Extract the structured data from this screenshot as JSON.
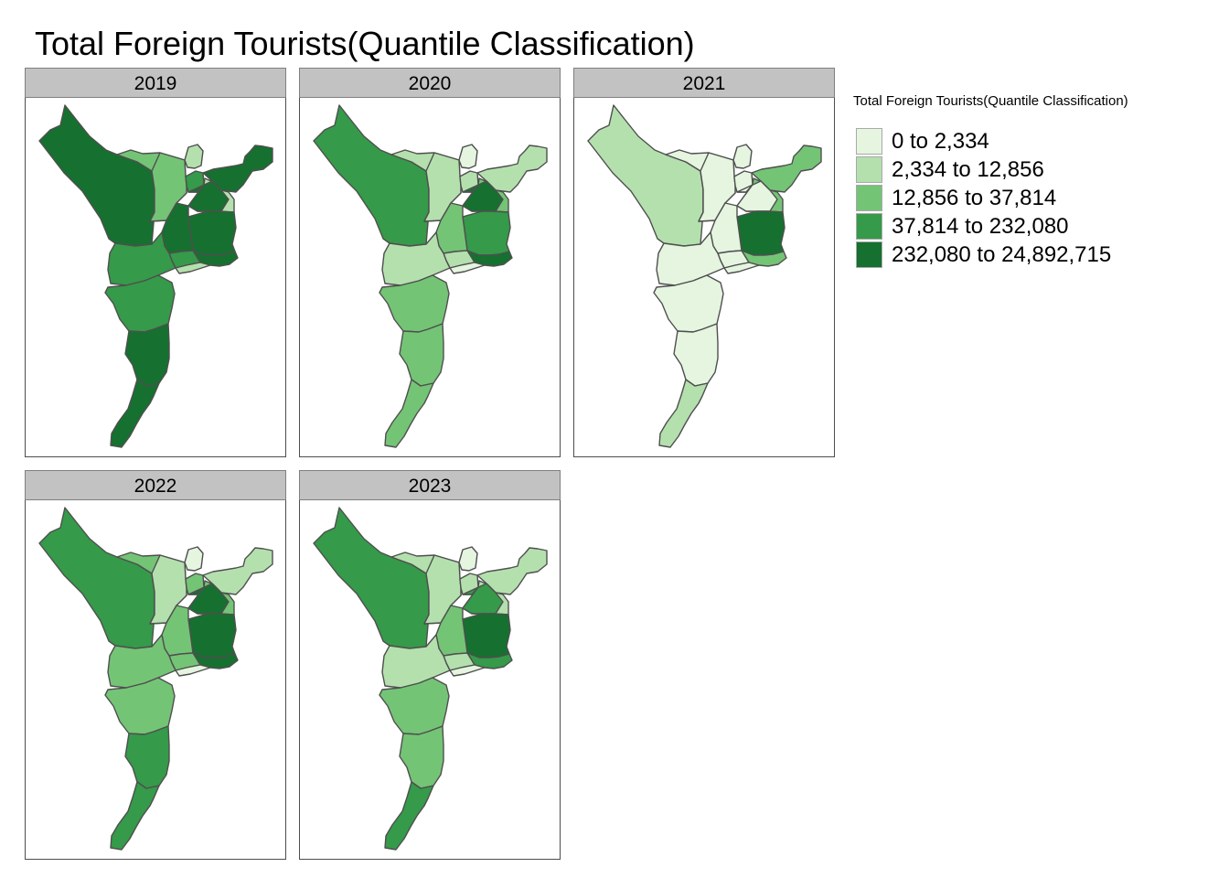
{
  "title": "Total Foreign Tourists(Quantile Classification)",
  "legend": {
    "title": "Total Foreign Tourists(Quantile Classification)",
    "classes": [
      {
        "label": "0 to 2,334",
        "color": "#e5f5e0"
      },
      {
        "label": "2,334 to 12,856",
        "color": "#b4e0ae"
      },
      {
        "label": "12,856 to 37,814",
        "color": "#74c476"
      },
      {
        "label": "37,814 to 232,080",
        "color": "#359a49"
      },
      {
        "label": "232,080 to 24,892,715",
        "color": "#16702f"
      }
    ]
  },
  "panels": [
    {
      "year": "2019",
      "classes": [
        4,
        2,
        2,
        1,
        3,
        4,
        1,
        4,
        4,
        4,
        4,
        3,
        3,
        1,
        3,
        4,
        4
      ]
    },
    {
      "year": "2020",
      "classes": [
        3,
        1,
        1,
        0,
        1,
        1,
        2,
        4,
        3,
        4,
        2,
        1,
        1,
        0,
        2,
        2,
        2
      ]
    },
    {
      "year": "2021",
      "classes": [
        1,
        0,
        0,
        0,
        0,
        2,
        2,
        0,
        4,
        2,
        0,
        0,
        0,
        0,
        0,
        0,
        1
      ]
    },
    {
      "year": "2022",
      "classes": [
        3,
        2,
        1,
        0,
        2,
        1,
        2,
        4,
        4,
        4,
        2,
        2,
        2,
        0,
        2,
        3,
        3
      ]
    },
    {
      "year": "2023",
      "classes": [
        3,
        1,
        1,
        0,
        1,
        1,
        1,
        3,
        4,
        3,
        2,
        1,
        1,
        0,
        2,
        2,
        3
      ]
    }
  ]
}
